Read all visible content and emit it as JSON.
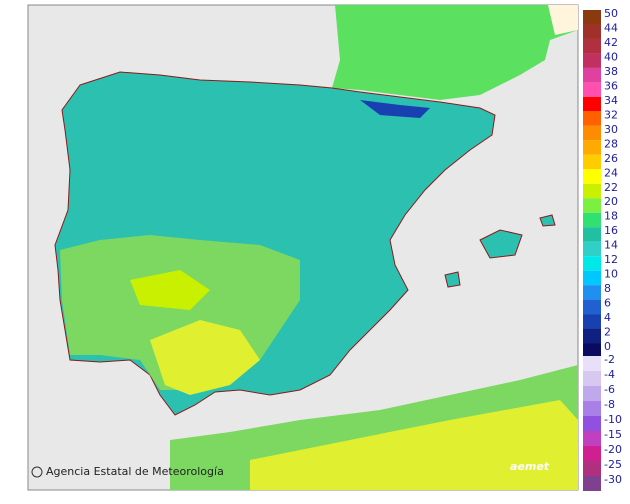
{
  "legend": {
    "labels": [
      50,
      44,
      42,
      40,
      38,
      36,
      34,
      32,
      30,
      28,
      26,
      24,
      22,
      20,
      18,
      16,
      14,
      12,
      10,
      8,
      6,
      4,
      2,
      0,
      -2,
      -4,
      -6,
      -8,
      -10,
      -15,
      -20,
      -25,
      -30
    ],
    "colors": [
      "#8b3a0f",
      "#a0302a",
      "#b03040",
      "#c03060",
      "#e040a0",
      "#ff50b0",
      "#ff0000",
      "#ff6000",
      "#ff8c00",
      "#ffaa00",
      "#ffcc00",
      "#ffff00",
      "#c8f000",
      "#7cf040",
      "#30e070",
      "#20c0a0",
      "#30d0c8",
      "#00e8e8",
      "#00c8ff",
      "#2090f0",
      "#2060d0",
      "#1840b0",
      "#102080",
      "#0a0a60",
      "#e8e0f8",
      "#d8c8f0",
      "#c0a8ec",
      "#a880e8",
      "#9050e0",
      "#c040c0",
      "#d02090",
      "#b03080",
      "#804090"
    ]
  },
  "credit": "Agencia Estatal de Meteorología",
  "logo": "aemet"
}
